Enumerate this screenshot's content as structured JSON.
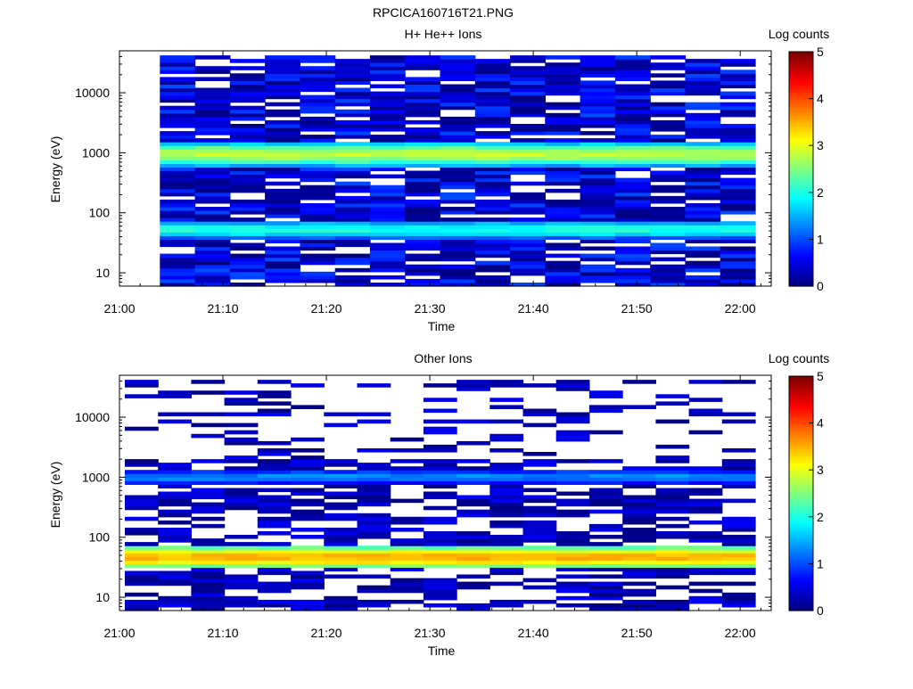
{
  "figure_title": "RPCICA160716T21.PNG",
  "chart_data": [
    {
      "type": "heatmap",
      "title": "H+ He++ Ions",
      "xlabel": "Time",
      "ylabel": "Energy (eV)",
      "x_range": [
        "21:00",
        "22:03"
      ],
      "x_ticks": [
        "21:00",
        "21:10",
        "21:20",
        "21:30",
        "21:40",
        "21:50",
        "22:00"
      ],
      "y_scale": "log",
      "y_range": [
        6,
        50000
      ],
      "y_ticks": [
        "10",
        "100",
        "1000",
        "10000"
      ],
      "colorbar": {
        "label": "Log counts",
        "range": [
          0,
          5
        ],
        "ticks": [
          "0",
          "1",
          "2",
          "3",
          "4",
          "5"
        ]
      },
      "time_bins": 18,
      "data_start_bin": 1,
      "features": [
        {
          "energy_low": 600,
          "energy_high": 1500,
          "log_counts_peak": 2.8,
          "description_band": "primary"
        },
        {
          "energy_low": 38,
          "energy_high": 75,
          "log_counts_peak": 2.0,
          "description_band": "secondary"
        }
      ],
      "background_log_counts": [
        0,
        1
      ]
    },
    {
      "type": "heatmap",
      "title": "Other Ions",
      "xlabel": "Time",
      "ylabel": "Energy (eV)",
      "x_range": [
        "21:00",
        "22:03"
      ],
      "x_ticks": [
        "21:00",
        "21:10",
        "21:20",
        "21:30",
        "21:40",
        "21:50",
        "22:00"
      ],
      "y_scale": "log",
      "y_range": [
        6,
        50000
      ],
      "y_ticks": [
        "10",
        "100",
        "1000",
        "10000"
      ],
      "colorbar": {
        "label": "Log counts",
        "range": [
          0,
          5
        ],
        "ticks": [
          "0",
          "1",
          "2",
          "3",
          "4",
          "5"
        ]
      },
      "time_bins": 19,
      "data_start_bin": 0,
      "features": [
        {
          "energy_low": 30,
          "energy_high": 75,
          "log_counts_peak": 3.5,
          "description_band": "primary"
        },
        {
          "energy_low": 800,
          "energy_high": 1300,
          "log_counts_peak": 1.3,
          "description_band": "secondary"
        }
      ],
      "background_log_counts": [
        0,
        0.6
      ]
    }
  ]
}
